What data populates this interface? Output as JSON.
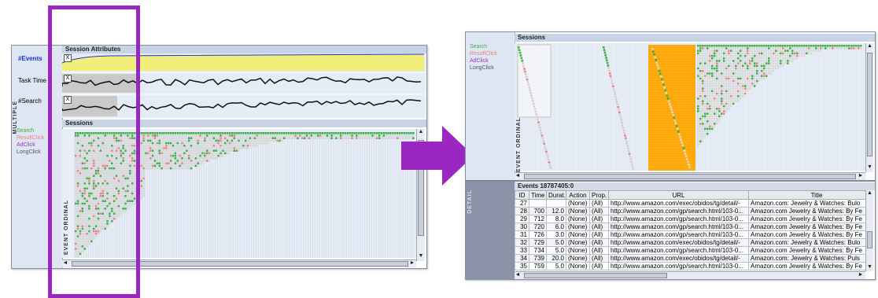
{
  "colors": {
    "accent": "#9b27c2",
    "search": "#3cb043",
    "result_click": "#f08080",
    "ad_click": "#9933cc",
    "long_click": "#555555",
    "orange": "#ffa500",
    "yellow": "#f2ee7a",
    "blue_line": "#2233cc"
  },
  "left": {
    "side_label": "MULTIPLE",
    "session_attributes_header": "Session Attributes",
    "attributes": [
      {
        "label": "#Events",
        "button": "X"
      },
      {
        "label": "Task Time",
        "button": "X"
      },
      {
        "label": "#Search",
        "button": "X"
      }
    ],
    "sessions_header": "Sessions",
    "legend": [
      "Search",
      "ResultClick",
      "AdClick",
      "LongClick"
    ],
    "event_ordinal": "EVENT ORDINAL"
  },
  "right": {
    "sessions_header": "Sessions",
    "legend": [
      "Search",
      "ResultClick",
      "AdClick",
      "LongClick"
    ],
    "event_ordinal": "EVENT ORDINAL",
    "detail_side_label": "DETAIL",
    "events_header": "Events 18787405:0",
    "table": {
      "columns": [
        "ID",
        "Time",
        "Durat.",
        "Action",
        "Prop.",
        "URL",
        "Title"
      ],
      "rows": [
        [
          "27",
          "",
          "",
          "(None)",
          "(All)",
          "http://www.amazon.com/exec/obidos/tg/detail/-",
          "Amazon.com: Jewelry & Watches: Bulo"
        ],
        [
          "28",
          "700",
          "12.0",
          "(None)",
          "(All)",
          "http://www.amazon.com/gp/search.html/103-0...",
          "Amazon.com Jewelry & Watches: By Fe"
        ],
        [
          "29",
          "712",
          "8.0",
          "(None)",
          "(All)",
          "http://www.amazon.com/gp/search.html/103-0...",
          "Amazon.com Jewelry & Watches: By Fe"
        ],
        [
          "30",
          "720",
          "6.0",
          "(None)",
          "(All)",
          "http://www.amazon.com/gp/search.html/103-0...",
          "Amazon.com Jewelry & Watches: By Fe"
        ],
        [
          "31",
          "726",
          "3.0",
          "(None)",
          "(All)",
          "http://www.amazon.com/gp/search.html/103-0...",
          "Amazon.com Jewelry & Watches: By Fe"
        ],
        [
          "32",
          "729",
          "5.0",
          "(None)",
          "(All)",
          "http://www.amazon.com/exec/obidos/tg/detail/-",
          "Amazon.com: Jewelry & Watches: Bulo"
        ],
        [
          "33",
          "734",
          "5.0",
          "(None)",
          "(All)",
          "http://www.amazon.com/gp/search.html/103-0...",
          "Amazon.com Jewelry & Watches: By Fe"
        ],
        [
          "34",
          "739",
          "20.0",
          "(None)",
          "(All)",
          "http://www.amazon.com/exec/obidos/tg/detail/-",
          "Amazon.com: Jewelry & Watches: Puls"
        ],
        [
          "35",
          "759",
          "5.0",
          "(None)",
          "(All)",
          "http://www.amazon.com/gp/search.html/103-0...",
          "Amazon.com Jewelry & Watches: By Fe"
        ]
      ]
    }
  }
}
